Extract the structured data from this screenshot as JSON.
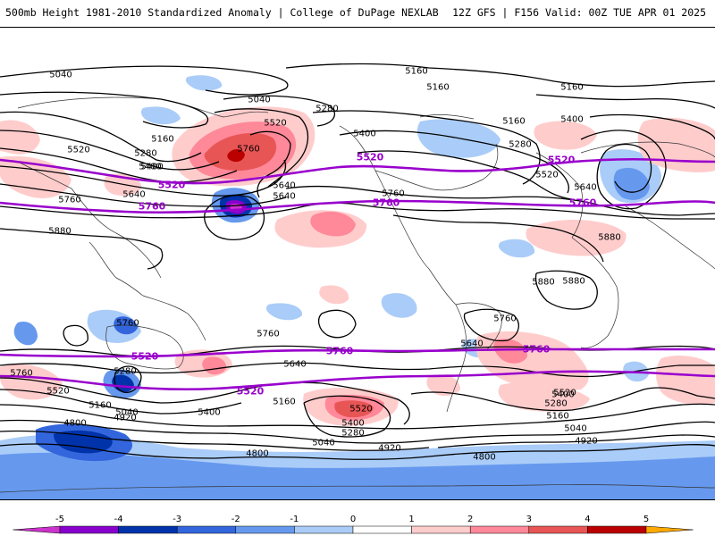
{
  "header": {
    "title_left": "500mb Height 1981-2010 Standardized Anomaly | College of DuPage NEXLAB",
    "title_right": "12Z GFS | F156 Valid: 00Z TUE APR 01 2025"
  },
  "colorbar": {
    "ticks": [
      "-5",
      "-4",
      "-3",
      "-2",
      "-1",
      "0",
      "1",
      "2",
      "3",
      "4",
      "5"
    ],
    "colors": [
      "#cc33cc",
      "#8800cc",
      "#0033aa",
      "#3366dd",
      "#6699ee",
      "#aaccf8",
      "#ffffff",
      "#ffcccc",
      "#ff8899",
      "#e85555",
      "#bb0000",
      "#ffaa00"
    ]
  },
  "contours": {
    "line_color": "#000000",
    "highlight_color": "#9900cc",
    "labels": [
      {
        "text": "5040",
        "kind": "black"
      },
      {
        "text": "5160",
        "kind": "black"
      },
      {
        "text": "5160",
        "kind": "black"
      },
      {
        "text": "5160",
        "kind": "black"
      },
      {
        "text": "5040",
        "kind": "black"
      },
      {
        "text": "5280",
        "kind": "black"
      },
      {
        "text": "5520",
        "kind": "black"
      },
      {
        "text": "5400",
        "kind": "black"
      },
      {
        "text": "5160",
        "kind": "black"
      },
      {
        "text": "5400",
        "kind": "black"
      },
      {
        "text": "5160",
        "kind": "black"
      },
      {
        "text": "5280",
        "kind": "black"
      },
      {
        "text": "5520",
        "kind": "black"
      },
      {
        "text": "5280",
        "kind": "black"
      },
      {
        "text": "5400",
        "kind": "black"
      },
      {
        "text": "5760",
        "kind": "black"
      },
      {
        "text": "5400",
        "kind": "black"
      },
      {
        "text": "5640",
        "kind": "black"
      },
      {
        "text": "5640",
        "kind": "black"
      },
      {
        "text": "5760",
        "kind": "black"
      },
      {
        "text": "5640",
        "kind": "black"
      },
      {
        "text": "5520",
        "kind": "black"
      },
      {
        "text": "5760",
        "kind": "black"
      },
      {
        "text": "5640",
        "kind": "black"
      },
      {
        "text": "5880",
        "kind": "black"
      },
      {
        "text": "5880",
        "kind": "black"
      },
      {
        "text": "5880",
        "kind": "black"
      },
      {
        "text": "5880",
        "kind": "black"
      },
      {
        "text": "5760",
        "kind": "black"
      },
      {
        "text": "5760",
        "kind": "black"
      },
      {
        "text": "5760",
        "kind": "black"
      },
      {
        "text": "5640",
        "kind": "black"
      },
      {
        "text": "5760",
        "kind": "black"
      },
      {
        "text": "5280",
        "kind": "black"
      },
      {
        "text": "5640",
        "kind": "black"
      },
      {
        "text": "5520",
        "kind": "black"
      },
      {
        "text": "5160",
        "kind": "black"
      },
      {
        "text": "5040",
        "kind": "black"
      },
      {
        "text": "4920",
        "kind": "black"
      },
      {
        "text": "5400",
        "kind": "black"
      },
      {
        "text": "5160",
        "kind": "black"
      },
      {
        "text": "5520",
        "kind": "black"
      },
      {
        "text": "5400",
        "kind": "black"
      },
      {
        "text": "5280",
        "kind": "black"
      },
      {
        "text": "5040",
        "kind": "black"
      },
      {
        "text": "4920",
        "kind": "black"
      },
      {
        "text": "5400",
        "kind": "black"
      },
      {
        "text": "5520",
        "kind": "black"
      },
      {
        "text": "5280",
        "kind": "black"
      },
      {
        "text": "5160",
        "kind": "black"
      },
      {
        "text": "5040",
        "kind": "black"
      },
      {
        "text": "4920",
        "kind": "black"
      },
      {
        "text": "4800",
        "kind": "black"
      },
      {
        "text": "4800",
        "kind": "black"
      },
      {
        "text": "4800",
        "kind": "black"
      },
      {
        "text": "5520",
        "kind": "purple"
      },
      {
        "text": "5520",
        "kind": "purple"
      },
      {
        "text": "5520",
        "kind": "purple"
      },
      {
        "text": "5760",
        "kind": "purple"
      },
      {
        "text": "5760",
        "kind": "purple"
      },
      {
        "text": "5760",
        "kind": "purple"
      },
      {
        "text": "5760",
        "kind": "purple"
      },
      {
        "text": "5760",
        "kind": "purple"
      },
      {
        "text": "5520",
        "kind": "purple"
      },
      {
        "text": "5520",
        "kind": "purple"
      }
    ]
  }
}
